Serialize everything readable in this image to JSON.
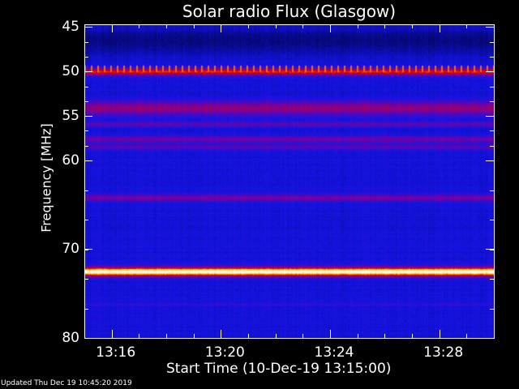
{
  "chart_data": {
    "type": "heatmap",
    "title": "Solar radio Flux (Glasgow)",
    "xlabel": "Start Time (10-Dec-19 13:15:00)",
    "ylabel": "Frequency [MHz]",
    "xlim": [
      "13:15",
      "13:30"
    ],
    "ylim": [
      44.7,
      80
    ],
    "y_inverted": true,
    "x_ticks": [
      "13:16",
      "13:20",
      "13:24",
      "13:28"
    ],
    "y_ticks": [
      45,
      50,
      55,
      60,
      70,
      80
    ],
    "colormap": [
      "#00003c",
      "#1414e6",
      "#7800a0",
      "#dc0000",
      "#ffc800",
      "#ffffff"
    ],
    "background_intensity": 0.28,
    "features": [
      {
        "freq": 45.2,
        "width": 0.3,
        "intensity": 0.33,
        "note": "blue stripe"
      },
      {
        "freq": 46.5,
        "width": 1.5,
        "intensity": 0.12
      },
      {
        "freq": 50.0,
        "width": 0.4,
        "intensity": 0.72,
        "note": "periodic spikes"
      },
      {
        "freq": 54.1,
        "width": 0.8,
        "intensity": 0.55
      },
      {
        "freq": 55.9,
        "width": 0.3,
        "intensity": 0.45
      },
      {
        "freq": 57.6,
        "width": 0.4,
        "intensity": 0.48
      },
      {
        "freq": 58.5,
        "width": 0.3,
        "intensity": 0.44
      },
      {
        "freq": 64.2,
        "width": 0.4,
        "intensity": 0.5
      },
      {
        "freq": 72.5,
        "width": 0.5,
        "intensity": 1.0
      },
      {
        "freq": 76.2,
        "width": 0.2,
        "intensity": 0.36
      }
    ]
  },
  "footer": {
    "updated": "Updated Thu Dec 19 10:45:20 2019"
  }
}
